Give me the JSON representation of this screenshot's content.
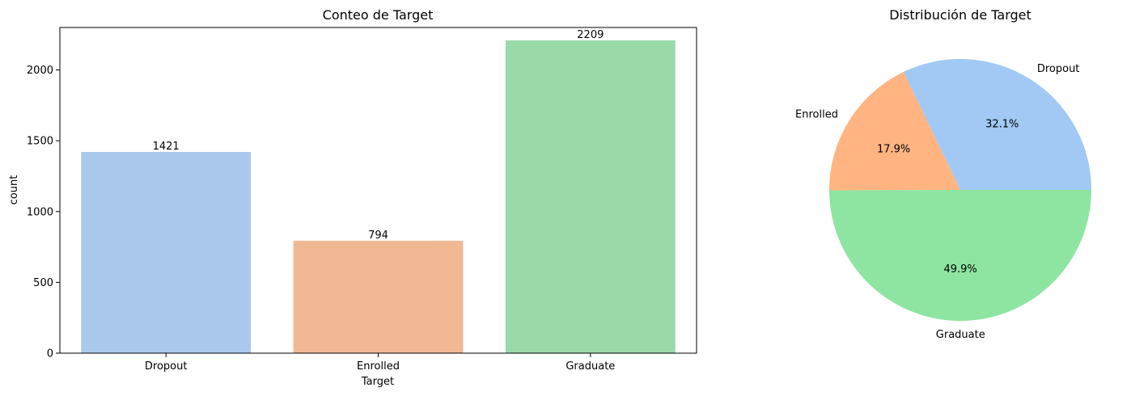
{
  "chart_data": [
    {
      "type": "bar",
      "title": "Conteo de Target",
      "xlabel": "Target",
      "ylabel": "count",
      "categories": [
        "Dropout",
        "Enrolled",
        "Graduate"
      ],
      "values": [
        1421,
        794,
        2209
      ],
      "data_labels": [
        "1421",
        "794",
        "2209"
      ],
      "colors": [
        "#abc9ed",
        "#f0b893",
        "#9ad9a8"
      ],
      "ylim": [
        0,
        2300
      ],
      "yticks": [
        0,
        500,
        1000,
        1500,
        2000
      ],
      "grid": false
    },
    {
      "type": "pie",
      "title": "Distribución de Target",
      "labels": [
        "Dropout",
        "Enrolled",
        "Graduate"
      ],
      "values": [
        32.1,
        17.9,
        49.9
      ],
      "pct_labels": [
        "32.1%",
        "17.9%",
        "49.9%"
      ],
      "colors": [
        "#a1c9f4",
        "#ffb482",
        "#8de5a1"
      ]
    }
  ]
}
